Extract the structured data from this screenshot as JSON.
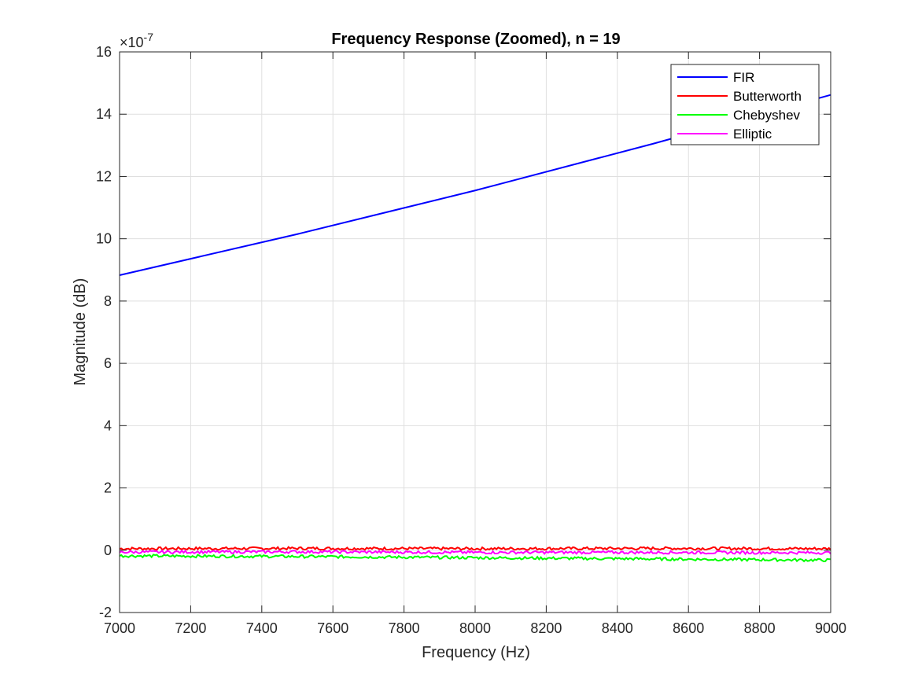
{
  "chart_data": {
    "type": "line",
    "title": "Frequency Response (Zoomed), n = 19",
    "xlabel": "Frequency (Hz)",
    "ylabel": "Magnitude (dB)",
    "y_exponent_label": "×10",
    "y_exponent_power": "-7",
    "xlim": [
      7000,
      9000
    ],
    "ylim": [
      -2,
      16
    ],
    "xticks": [
      7000,
      7200,
      7400,
      7600,
      7800,
      8000,
      8200,
      8400,
      8600,
      8800,
      9000
    ],
    "yticks": [
      -2,
      0,
      2,
      4,
      6,
      8,
      10,
      12,
      14,
      16
    ],
    "grid": true,
    "legend_position": "top-right",
    "series": [
      {
        "name": "FIR",
        "color": "#0000ff",
        "noisy": false,
        "x": [
          7000,
          7500,
          8000,
          8500,
          9000
        ],
        "y": [
          8.83,
          10.15,
          11.55,
          13.05,
          14.62
        ]
      },
      {
        "name": "Butterworth",
        "color": "#ff0000",
        "noisy": true,
        "x": [
          7000,
          7500,
          8000,
          8500,
          9000
        ],
        "y": [
          0.05,
          0.06,
          0.05,
          0.06,
          0.05
        ]
      },
      {
        "name": "Chebyshev",
        "color": "#00ff00",
        "noisy": true,
        "x": [
          7000,
          7500,
          8000,
          8500,
          9000
        ],
        "y": [
          -0.18,
          -0.2,
          -0.24,
          -0.28,
          -0.32
        ]
      },
      {
        "name": "Elliptic",
        "color": "#ff00ff",
        "noisy": true,
        "x": [
          7000,
          7500,
          8000,
          8500,
          9000
        ],
        "y": [
          -0.06,
          -0.05,
          -0.07,
          -0.07,
          -0.08
        ]
      }
    ]
  }
}
